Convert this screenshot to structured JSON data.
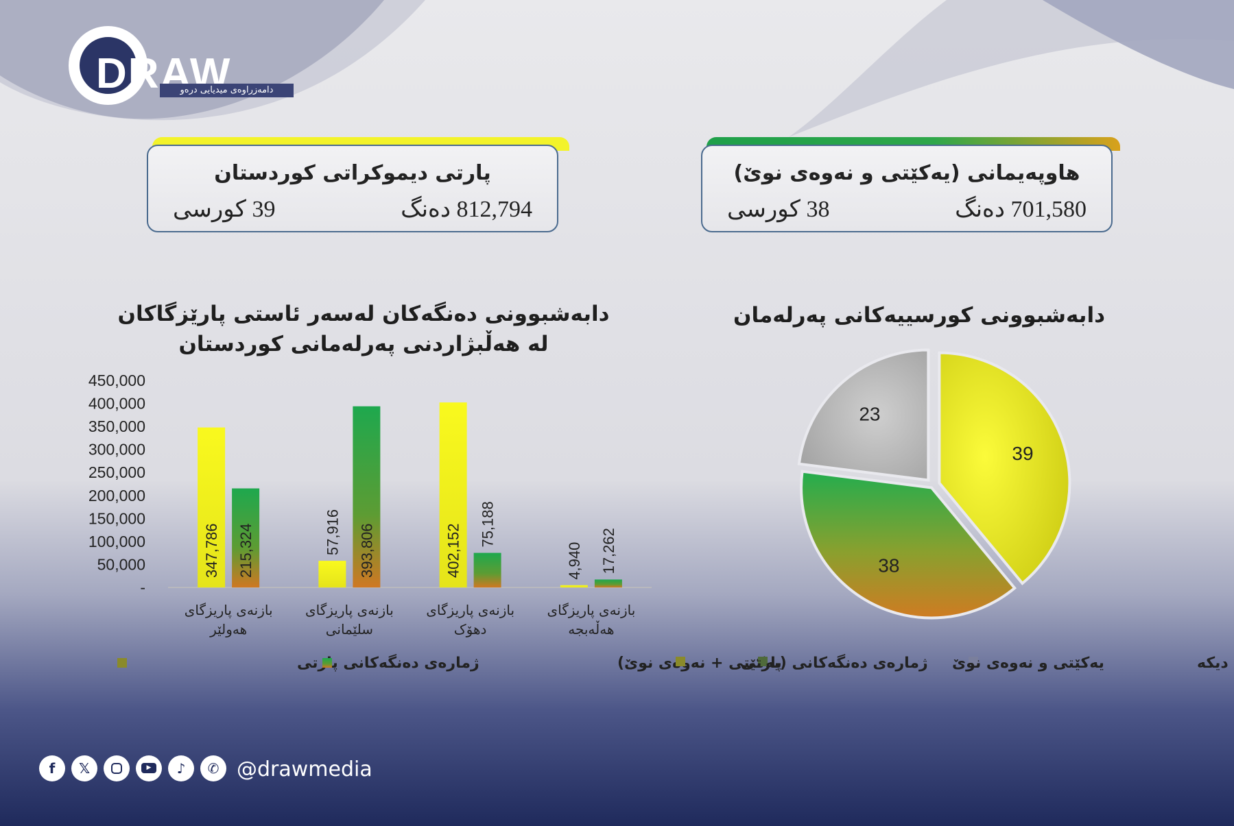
{
  "brand": {
    "logo_text": "DRAW",
    "logo_tagline": "دامەزراوەی میدیایی درەو",
    "handle": "@drawmedia",
    "social_icons": [
      "facebook-icon",
      "x-icon",
      "instagram-icon",
      "youtube-icon",
      "tiktok-icon",
      "whatsapp-icon"
    ]
  },
  "boxes": {
    "kdp": {
      "title": "پارتی دیموکراتی کوردستان",
      "votes": "812,794 دەنگ",
      "seats": "39 کورسی",
      "accent_color": "#f3f32a"
    },
    "alliance": {
      "title": "هاوپەیمانی (یەکێتی و نەوەی نوێ)",
      "votes": "701,580 دەنگ",
      "seats": "38 کورسی",
      "accent_color": "#2fa74a"
    }
  },
  "colors": {
    "yellow": "#f5f51e",
    "green": "#1ea84e",
    "orange": "#c77a25",
    "gray": "#b0b0b0",
    "navy": "#1f2a5c"
  },
  "chart_data": [
    {
      "type": "bar",
      "title": "دابەشبوونی دەنگەکان لەسەر ئاستی پارێزگاکان لە هەڵبژاردنی پەرلەمانی کوردستان",
      "title_lines": [
        "دابەشبوونی دەنگەکان لەسەر ئاستی پارێزگاکان",
        "لە هەڵبژاردنی پەرلەمانی کوردستان"
      ],
      "categories": [
        "بازنەی پاریزگای هەولێر",
        "بازنەی پاریزگای سلێمانی",
        "بازنەی پاریزگای دهۆک",
        "بازنەی پاریزگای هەڵەبجە"
      ],
      "category_lines": [
        [
          "بازنەی پاریزگای",
          "هەولێر"
        ],
        [
          "بازنەی پاریزگای",
          "سلێمانی"
        ],
        [
          "بازنەی پاریزگای",
          "دهۆک"
        ],
        [
          "بازنەی پاریزگای",
          "هەڵەبجە"
        ]
      ],
      "series": [
        {
          "name": "ژمارەی دەنگەکانی پارتی",
          "values": [
            347786,
            57916,
            402152,
            4940
          ],
          "labels": [
            "347,786",
            "57,916",
            "402,152",
            "4,940"
          ]
        },
        {
          "name": "ژمارەی دەنگەکانی (یەکێتی + نەوەی نوێ)",
          "values": [
            215324,
            393806,
            75188,
            17262
          ],
          "labels": [
            "215,324",
            "393,806",
            "75,188",
            "17,262"
          ]
        }
      ],
      "ylim": [
        0,
        450000
      ],
      "yticks": [
        0,
        50000,
        100000,
        150000,
        200000,
        250000,
        300000,
        350000,
        400000,
        450000
      ],
      "ytick_labels": [
        "-",
        "50,000",
        "100,000",
        "150,000",
        "200,000",
        "250,000",
        "300,000",
        "350,000",
        "400,000",
        "450,000"
      ],
      "grid": false,
      "legend_position": "bottom"
    },
    {
      "type": "pie",
      "title": "دابەشبوونی کورسییەکانی پەرلەمان",
      "slices": [
        {
          "name": "پارتی",
          "value": 39,
          "label": "39"
        },
        {
          "name": "یەکێتی و نەوەی نوێ",
          "value": 38,
          "label": "38"
        },
        {
          "name": "پێکهاتەو لایەنەکانی دیکە",
          "value": 23,
          "label": "23"
        }
      ],
      "legend_position": "bottom"
    }
  ]
}
